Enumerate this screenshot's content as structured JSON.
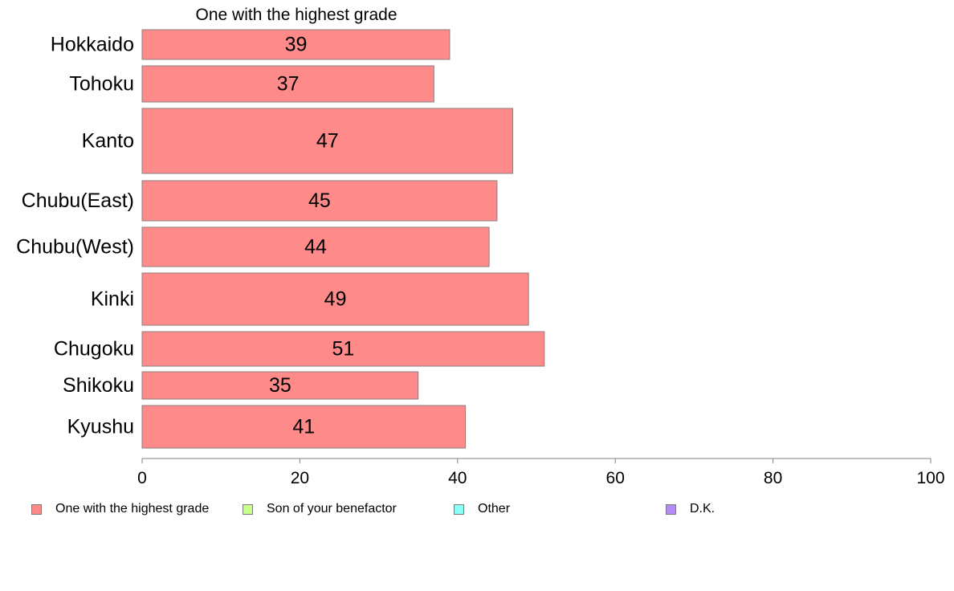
{
  "chart_data": {
    "type": "bar",
    "orientation": "horizontal",
    "title": "One with the highest grade",
    "categories": [
      "Hokkaido",
      "Tohoku",
      "Kanto",
      "Chubu(East)",
      "Chubu(West)",
      "Kinki",
      "Chugoku",
      "Shikoku",
      "Kyushu"
    ],
    "series": [
      {
        "name": "One with the highest grade",
        "values": [
          39,
          37,
          47,
          45,
          44,
          49,
          51,
          35,
          41
        ],
        "color": "#ff8a8a"
      }
    ],
    "data_labels": [
      "39",
      "37",
      "47",
      "45",
      "44",
      "49",
      "51",
      "35",
      "41"
    ],
    "xlim": [
      0,
      100
    ],
    "xticks": [
      0,
      20,
      40,
      60,
      80,
      100
    ],
    "xtick_labels": [
      "0",
      "20",
      "40",
      "60",
      "80",
      "100"
    ],
    "grid": false,
    "legend_position": "bottom",
    "legend": [
      {
        "label": "One with the highest grade",
        "color": "#ff8a8a"
      },
      {
        "label": "Son of your benefactor",
        "color": "#c8ff8a"
      },
      {
        "label": "Other",
        "color": "#8afff8"
      },
      {
        "label": "D.K.",
        "color": "#b48af5"
      }
    ]
  }
}
